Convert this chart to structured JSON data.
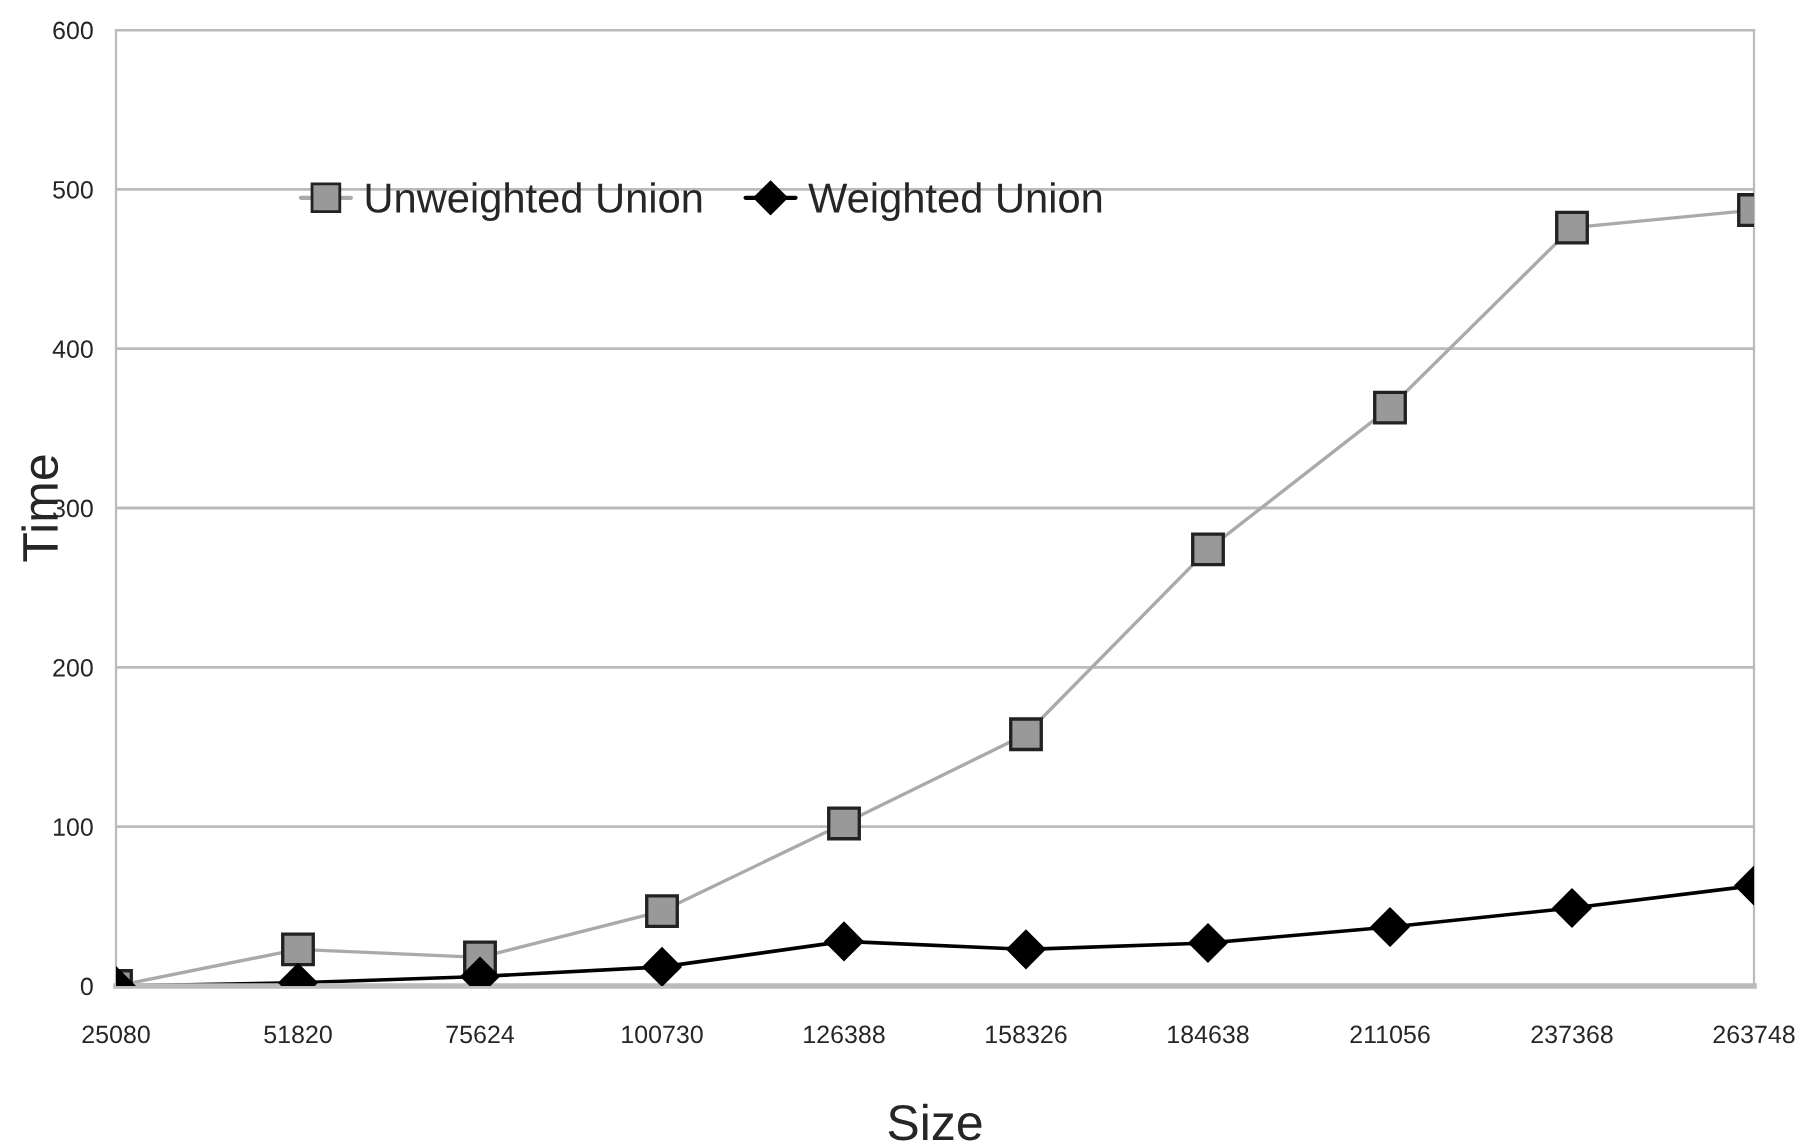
{
  "chart_data": {
    "type": "line",
    "xlabel": "Size",
    "ylabel": "Time",
    "categories": [
      "25080",
      "51820",
      "75624",
      "100730",
      "126388",
      "158326",
      "184638",
      "211056",
      "237368",
      "263748"
    ],
    "series": [
      {
        "name": "Unweighted Union",
        "color": "#999999",
        "marker": "square",
        "values": [
          0,
          23,
          18,
          47,
          102,
          158,
          274,
          363,
          476,
          487
        ]
      },
      {
        "name": "Weighted Union",
        "color": "#000000",
        "marker": "diamond",
        "values": [
          0,
          2,
          6,
          12,
          28,
          23,
          27,
          37,
          49,
          63
        ]
      }
    ],
    "ylim": [
      0,
      600
    ],
    "yticks": [
      0,
      100,
      200,
      300,
      400,
      500,
      600
    ],
    "grid": "y",
    "legend": "top left"
  }
}
